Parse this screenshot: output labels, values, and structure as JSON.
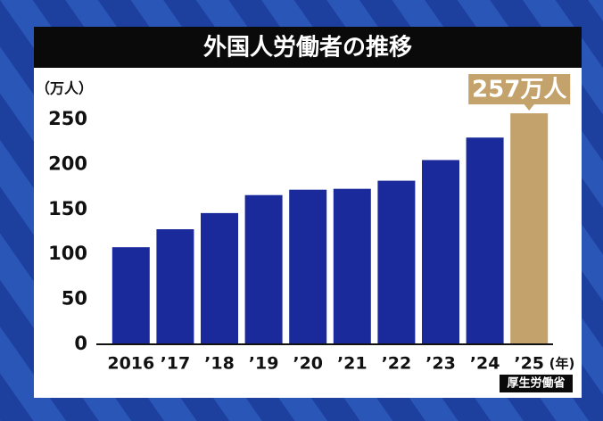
{
  "chart_data": {
    "type": "bar",
    "title": "外国人労働者の推移",
    "y_label": "（万人）",
    "x_unit": "(年)",
    "source": "厚生労働省",
    "categories": [
      "2016",
      "’17",
      "’18",
      "’19",
      "’20",
      "’21",
      "’22",
      "’23",
      "’24",
      "’25"
    ],
    "values": [
      108,
      128,
      146,
      166,
      172,
      173,
      182,
      205,
      230,
      257
    ],
    "value_labels": [
      null,
      null,
      null,
      null,
      null,
      null,
      null,
      null,
      null,
      "257万人"
    ],
    "colors": [
      "#1b2a9a",
      "#1b2a9a",
      "#1b2a9a",
      "#1b2a9a",
      "#1b2a9a",
      "#1b2a9a",
      "#1b2a9a",
      "#1b2a9a",
      "#1b2a9a",
      "#c4a26b"
    ],
    "ylim": [
      0,
      260
    ],
    "yticks": [
      0,
      50,
      100,
      150,
      200,
      250
    ]
  }
}
